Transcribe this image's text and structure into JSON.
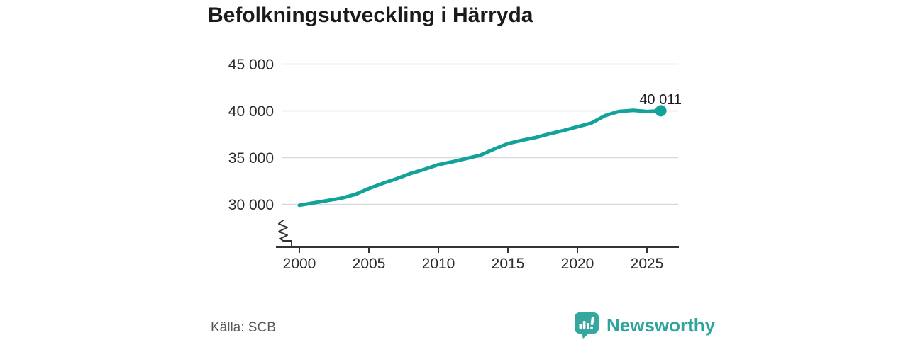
{
  "header": {
    "title": "Befolkningsutveckling i Härryda"
  },
  "footer": {
    "source": "Källa: SCB",
    "brand": "Newsworthy"
  },
  "colors": {
    "line": "#13a29a",
    "logo": "#36a79f",
    "grid": "#d9d9d9",
    "axis": "#333333",
    "text": "#1b1b1b",
    "muted": "#595959"
  },
  "chart_data": {
    "type": "line",
    "title": "Befolkningsutveckling i Härryda",
    "x": [
      2000,
      2001,
      2002,
      2003,
      2004,
      2005,
      2006,
      2007,
      2008,
      2009,
      2010,
      2011,
      2012,
      2013,
      2014,
      2015,
      2016,
      2017,
      2018,
      2019,
      2020,
      2021,
      2022,
      2023,
      2024,
      2025,
      2026
    ],
    "series": [
      {
        "name": "Befolkning",
        "color": "#13a29a",
        "values": [
          29900,
          30150,
          30400,
          30650,
          31050,
          31700,
          32250,
          32750,
          33300,
          33750,
          34250,
          34550,
          34900,
          35250,
          35900,
          36500,
          36850,
          37150,
          37550,
          37900,
          38300,
          38700,
          39500,
          39950,
          40050,
          39930,
          40011
        ]
      }
    ],
    "xtick_years": [
      2000,
      2005,
      2010,
      2015,
      2020,
      2025
    ],
    "xtick_labels": [
      "2000",
      "2005",
      "2010",
      "2015",
      "2020",
      "2025"
    ],
    "ytick_values": [
      45000,
      40000,
      35000,
      30000
    ],
    "ytick_labels": [
      "45 000",
      "40 000",
      "35 000",
      "30 000"
    ],
    "ylim": [
      29300,
      45000
    ],
    "xlim": [
      1998.6,
      2027.3
    ],
    "grid": "horizontal",
    "legend": "none",
    "axis_break": true,
    "last_point": {
      "x": 2026,
      "y": 40011
    },
    "last_point_label": "40 011"
  }
}
